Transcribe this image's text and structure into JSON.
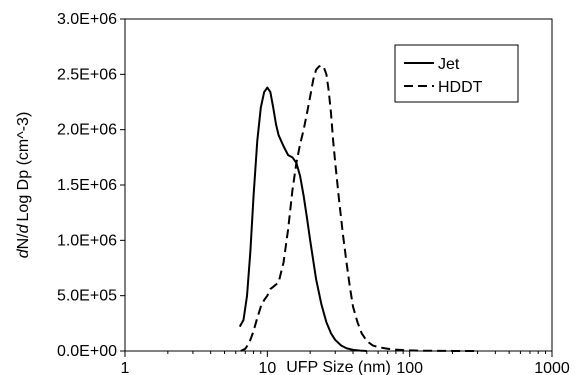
{
  "chart_data": {
    "type": "line",
    "title": "",
    "xlabel": "UFP Size (nm)",
    "ylabel_italic_d1": "d",
    "ylabel_mid": "N/",
    "ylabel_italic_d2": "d",
    "ylabel_rest": "Log Dp (cm^-3)",
    "x_scale": "log",
    "xlim": [
      1,
      1000
    ],
    "ylim": [
      0,
      3000000
    ],
    "x_ticks": [
      1,
      10,
      100,
      1000
    ],
    "x_tick_labels": [
      "1",
      "10",
      "100",
      "1000"
    ],
    "y_ticks": [
      0,
      500000,
      1000000,
      1500000,
      2000000,
      2500000,
      3000000
    ],
    "y_tick_labels": [
      "0.0E+00",
      "5.0E+05",
      "1.0E+06",
      "1.5E+06",
      "2.0E+06",
      "2.5E+06",
      "3.0E+06"
    ],
    "grid": false,
    "legend_position": "top-right",
    "series": [
      {
        "name": "Jet",
        "style": "solid",
        "color": "#000000",
        "x": [
          6.4,
          6.8,
          7.2,
          7.6,
          8.0,
          8.5,
          9.0,
          9.5,
          10.0,
          10.5,
          11.0,
          11.5,
          12.0,
          13.0,
          14.0,
          15.0,
          16.0,
          17.0,
          18.0,
          19.0,
          20.0,
          22.0,
          24.0,
          26.0,
          28.0,
          30.0,
          33.0,
          36.0,
          40.0,
          45.0,
          50.0
        ],
        "y": [
          220000,
          280000,
          500000,
          900000,
          1400000,
          1900000,
          2200000,
          2340000,
          2380000,
          2340000,
          2200000,
          2050000,
          1950000,
          1850000,
          1770000,
          1750000,
          1700000,
          1580000,
          1400000,
          1200000,
          1000000,
          650000,
          420000,
          260000,
          160000,
          100000,
          50000,
          25000,
          10000,
          3000,
          0
        ]
      },
      {
        "name": "HDDT",
        "style": "dashed",
        "color": "#000000",
        "x": [
          6.5,
          7.0,
          7.5,
          8.0,
          8.5,
          9.0,
          9.5,
          10.0,
          10.5,
          11.0,
          12.0,
          13.0,
          14.0,
          15.0,
          16.0,
          17.0,
          18.0,
          19.0,
          20.0,
          21.0,
          22.0,
          23.0,
          24.0,
          25.0,
          26.0,
          27.0,
          28.0,
          29.0,
          30.0,
          32.0,
          34.0,
          36.0,
          38.0,
          40.0,
          43.0,
          46.0,
          50.0,
          55.0,
          60.0,
          70.0,
          80.0,
          100.0,
          120.0,
          150.0,
          200.0,
          250.0,
          300.0
        ],
        "y": [
          0,
          20000,
          80000,
          180000,
          300000,
          400000,
          460000,
          500000,
          560000,
          580000,
          620000,
          800000,
          1100000,
          1450000,
          1700000,
          1870000,
          2000000,
          2150000,
          2300000,
          2450000,
          2540000,
          2570000,
          2580000,
          2560000,
          2500000,
          2350000,
          2150000,
          1900000,
          1700000,
          1350000,
          1050000,
          800000,
          580000,
          400000,
          260000,
          160000,
          90000,
          50000,
          35000,
          20000,
          12000,
          6000,
          3000,
          1500,
          500,
          100,
          0
        ]
      }
    ]
  }
}
